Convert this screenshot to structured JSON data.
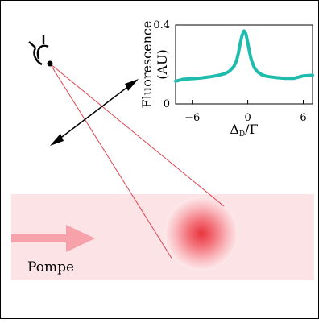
{
  "scene": {
    "beam_label": "Pompe",
    "colors": {
      "beam": "#fbe3e6",
      "arrow": "#f7a1ab",
      "ray": "#e0424f",
      "cloud_core": "#e9353e",
      "cloud_edge": "#fdeaec",
      "double_arrow": "#000000"
    },
    "icons": {
      "observer": "eye-icon",
      "pump_arrow": "right-arrow-icon",
      "polarization": "double-arrow-icon"
    }
  },
  "chart_data": {
    "type": "line",
    "xlabel": "Δ_D/Γ",
    "ylabel_line1": "Fluorescence",
    "ylabel_line2": "(AU)",
    "x_ticks": [
      "−6",
      "0",
      "6"
    ],
    "x_tick_values": [
      -6,
      0,
      6
    ],
    "y_ticks": [
      "0",
      "0.4"
    ],
    "y_tick_values": [
      0,
      0.4
    ],
    "xlim": [
      -7.8,
      7.0
    ],
    "ylim": [
      0,
      0.4
    ],
    "series_color": "#1fbcae",
    "grid": false,
    "x": [
      -7.8,
      -7,
      -6,
      -5,
      -4,
      -3.5,
      -3,
      -2.5,
      -2,
      -1.5,
      -1.2,
      -1,
      -0.8,
      -0.6,
      -0.4,
      -0.2,
      0,
      0.2,
      0.4,
      0.7,
      1,
      1.5,
      2,
      3,
      4,
      5,
      6,
      7
    ],
    "values": [
      0.115,
      0.125,
      0.128,
      0.132,
      0.138,
      0.142,
      0.147,
      0.153,
      0.165,
      0.19,
      0.22,
      0.26,
      0.31,
      0.35,
      0.37,
      0.355,
      0.31,
      0.26,
      0.22,
      0.185,
      0.165,
      0.148,
      0.14,
      0.134,
      0.13,
      0.13,
      0.142,
      0.145
    ]
  }
}
